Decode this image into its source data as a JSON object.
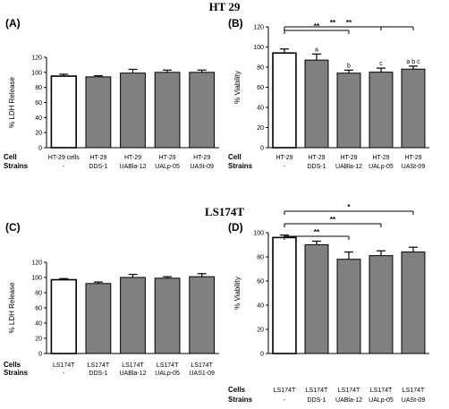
{
  "figure": {
    "section_titles": [
      "HT 29",
      "LS174T"
    ],
    "bar_colors": {
      "control": "#ffffff",
      "treated": "#808080"
    }
  },
  "chart_data": [
    {
      "panel": "(A)",
      "type": "bar",
      "ylabel": "% LDH Release",
      "ylim": [
        0,
        120
      ],
      "yticks": [
        "0",
        "20",
        "40",
        "60",
        "80",
        "100",
        "120"
      ],
      "row_labels": [
        "Cell",
        "Strains"
      ],
      "categories": [
        {
          "cell": "HT-29 cells",
          "strain": "-"
        },
        {
          "cell": "HT-29",
          "strain": "DDS-1"
        },
        {
          "cell": "HT-29",
          "strain": "UABla-12"
        },
        {
          "cell": "HT-29",
          "strain": "UALp-05"
        },
        {
          "cell": "HT-29",
          "strain": "UASt-09"
        }
      ],
      "values": [
        95,
        94,
        99,
        100,
        100
      ],
      "errors": [
        2.5,
        1.5,
        5,
        3,
        3
      ],
      "letters": [
        "",
        "",
        "",
        "",
        ""
      ],
      "significance": []
    },
    {
      "panel": "(B)",
      "type": "bar",
      "ylabel": "% Viability",
      "ylim": [
        0,
        120
      ],
      "yticks": [
        "0",
        "20",
        "40",
        "60",
        "80",
        "100",
        "120"
      ],
      "row_labels": [
        "Cell",
        "Strains"
      ],
      "categories": [
        {
          "cell": "HT-29",
          "strain": "-"
        },
        {
          "cell": "HT-29",
          "strain": "DDS-1"
        },
        {
          "cell": "HT-29",
          "strain": "UABla-12"
        },
        {
          "cell": "HT-29",
          "strain": "UALp-05"
        },
        {
          "cell": "HT-29",
          "strain": "UASt-09"
        }
      ],
      "values": [
        94,
        87,
        74,
        75,
        78
      ],
      "errors": [
        4,
        6,
        3,
        4,
        3
      ],
      "letters": [
        "",
        "a",
        "b",
        "c",
        "a b c"
      ],
      "significance": [
        {
          "from": 0,
          "to": 2,
          "label": "**"
        },
        {
          "from": 0,
          "to": 3,
          "label": "**"
        },
        {
          "from": 0,
          "to": 4,
          "label": "**"
        }
      ]
    },
    {
      "panel": "(C)",
      "type": "bar",
      "ylabel": "% LDH Release",
      "ylim": [
        0,
        120
      ],
      "yticks": [
        "0",
        "20",
        "40",
        "60",
        "80",
        "100",
        "120"
      ],
      "row_labels": [
        "Cells",
        "Strains"
      ],
      "categories": [
        {
          "cell": "LS174T",
          "strain": "-"
        },
        {
          "cell": "LS174T",
          "strain": "DDS-1"
        },
        {
          "cell": "LS174T",
          "strain": "UABla-12"
        },
        {
          "cell": "LS174T",
          "strain": "UALp-05"
        },
        {
          "cell": "LS174T",
          "strain": "UAS1-09"
        }
      ],
      "values": [
        97,
        92,
        100,
        99,
        101
      ],
      "errors": [
        1.5,
        2,
        4,
        2,
        4
      ],
      "letters": [
        "",
        "",
        "",
        "",
        ""
      ],
      "significance": []
    },
    {
      "panel": "(D)",
      "type": "bar",
      "ylabel": "% Viability",
      "ylim": [
        0,
        100
      ],
      "yticks": [
        "0",
        "20",
        "40",
        "60",
        "80",
        "100"
      ],
      "row_labels": [
        "Cells",
        "Strains"
      ],
      "categories": [
        {
          "cell": "LS174T",
          "strain": "-"
        },
        {
          "cell": "LS174T",
          "strain": "DDS-1"
        },
        {
          "cell": "LS174T",
          "strain": "UABla-12"
        },
        {
          "cell": "LS174T",
          "strain": "UALp-05"
        },
        {
          "cell": "LS174T",
          "strain": "UASt-09"
        }
      ],
      "values": [
        96,
        90,
        78,
        81,
        84
      ],
      "errors": [
        2,
        3,
        6,
        4,
        4
      ],
      "letters": [
        "",
        "",
        "",
        "",
        ""
      ],
      "significance": [
        {
          "from": 0,
          "to": 2,
          "label": "**"
        },
        {
          "from": 0,
          "to": 3,
          "label": "**"
        },
        {
          "from": 0,
          "to": 4,
          "label": "*"
        }
      ]
    }
  ]
}
